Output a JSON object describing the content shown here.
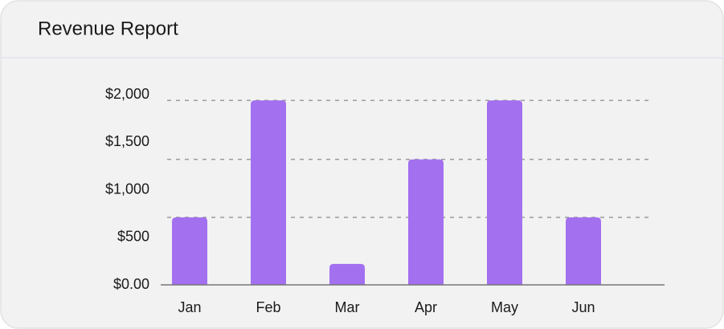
{
  "chart_data": {
    "type": "bar",
    "title": "Revenue Report",
    "categories": [
      "Jan",
      "Feb",
      "Mar",
      "Apr",
      "May",
      "Jun"
    ],
    "values": [
      710,
      1940,
      220,
      1320,
      1940,
      710
    ],
    "color": "#a370f0",
    "ylim": [
      0,
      2000
    ],
    "yticks": [
      {
        "value": 0,
        "label": "$0.00"
      },
      {
        "value": 500,
        "label": "$500"
      },
      {
        "value": 1000,
        "label": "$1,000"
      },
      {
        "value": 1500,
        "label": "$1,500"
      },
      {
        "value": 2000,
        "label": "$2,000"
      }
    ],
    "grid": true
  }
}
